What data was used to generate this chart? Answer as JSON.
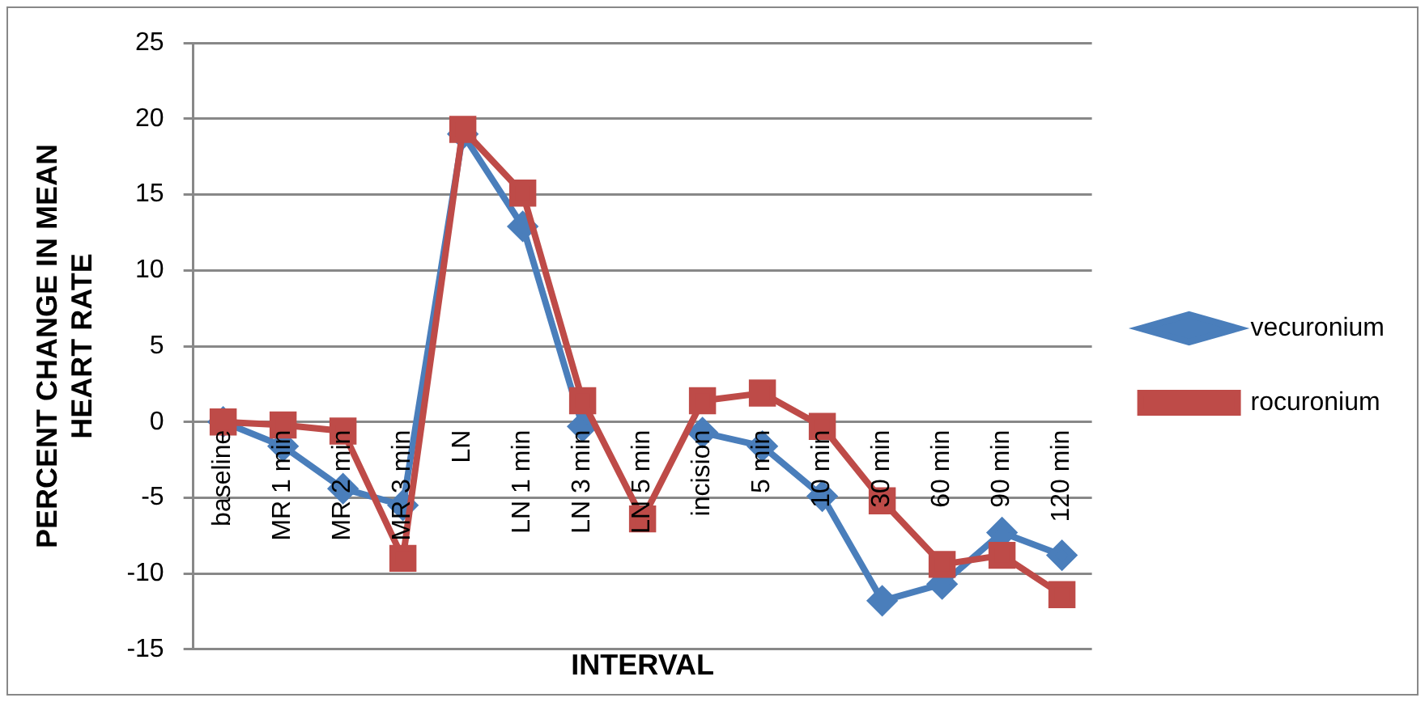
{
  "chart_data": {
    "type": "line",
    "xlabel": "INTERVAL",
    "ylabel": "PERCENT CHANGE IN MEAN HEART RATE",
    "categories": [
      "baseline",
      "MR 1 min",
      "MR 2 min",
      "MR 3 min",
      "LN",
      "LN 1 min",
      "LN 3 min",
      "LN 5 min",
      "incision",
      "5 min",
      "10 min",
      "30 min",
      "60 min",
      "90 min",
      "120 min"
    ],
    "series": [
      {
        "name": "vecuronium",
        "color": "#4a7ebb",
        "marker": "diamond",
        "values": [
          0,
          -1.6,
          -4.4,
          -5.5,
          19,
          12.9,
          -0.3,
          null,
          -0.7,
          -1.6,
          -4.9,
          -11.8,
          -10.7,
          -7.3,
          -8.8
        ]
      },
      {
        "name": "rocuronium",
        "color": "#be4b48",
        "marker": "square",
        "values": [
          0,
          -0.2,
          -0.6,
          -9,
          19.3,
          15.1,
          1.4,
          -6.4,
          1.4,
          1.9,
          -0.3,
          -5.2,
          -9.4,
          -8.8,
          -11.4
        ]
      }
    ],
    "ylim": [
      -15,
      25
    ],
    "yticks": [
      -15,
      -10,
      -5,
      0,
      5,
      10,
      15,
      20,
      25
    ],
    "grid": "y",
    "legend": "right"
  }
}
